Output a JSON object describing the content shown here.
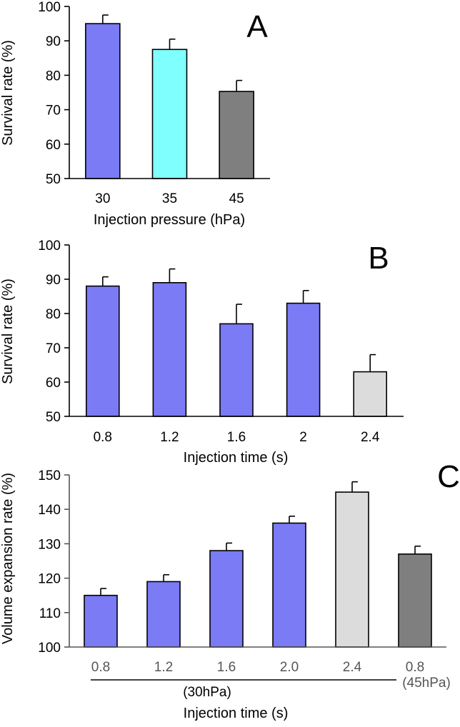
{
  "chart_data": [
    {
      "type": "bar",
      "panel": "A",
      "categories": [
        "30",
        "35",
        "45"
      ],
      "values": [
        95,
        87.5,
        75.3
      ],
      "errors": [
        2.5,
        3.0,
        3.2
      ],
      "colors": [
        "#7b7bf5",
        "#80ffff",
        "#7f7f7f"
      ],
      "xlabel": "Injection pressure (hPa)",
      "ylabel": "Survival rate (%)",
      "ylim": [
        50,
        100
      ],
      "yticks": [
        "50",
        "60",
        "70",
        "80",
        "90",
        "100"
      ]
    },
    {
      "type": "bar",
      "panel": "B",
      "categories": [
        "0.8",
        "1.2",
        "1.6",
        "2",
        "2.4"
      ],
      "values": [
        88,
        89,
        77,
        83,
        63
      ],
      "errors": [
        2.7,
        4.0,
        5.7,
        3.7,
        5.0
      ],
      "colors": [
        "#7b7bf5",
        "#7b7bf5",
        "#7b7bf5",
        "#7b7bf5",
        "#dcdcdc"
      ],
      "xlabel": "Injection time (s)",
      "ylabel": "Survival rate (%)",
      "ylim": [
        50,
        100
      ],
      "yticks": [
        "50",
        "60",
        "70",
        "80",
        "90",
        "100"
      ]
    },
    {
      "type": "bar",
      "panel": "C",
      "categories": [
        "0.8",
        "1.2",
        "1.6",
        "2.0",
        "2.4",
        "0.8"
      ],
      "extra_label": "(45hPa)",
      "group_label": "(30hPa)",
      "values": [
        115,
        119,
        128,
        136,
        145,
        127
      ],
      "errors": [
        2.0,
        2.0,
        2.2,
        2.0,
        3.0,
        2.3
      ],
      "colors": [
        "#7b7bf5",
        "#7b7bf5",
        "#7b7bf5",
        "#7b7bf5",
        "#dcdcdc",
        "#7f7f7f"
      ],
      "xlabel": "Injection time (s)",
      "ylabel": "Volume expansion rate (%)",
      "ylim": [
        100,
        150
      ],
      "yticks": [
        "100",
        "110",
        "120",
        "130",
        "140",
        "150"
      ]
    }
  ]
}
